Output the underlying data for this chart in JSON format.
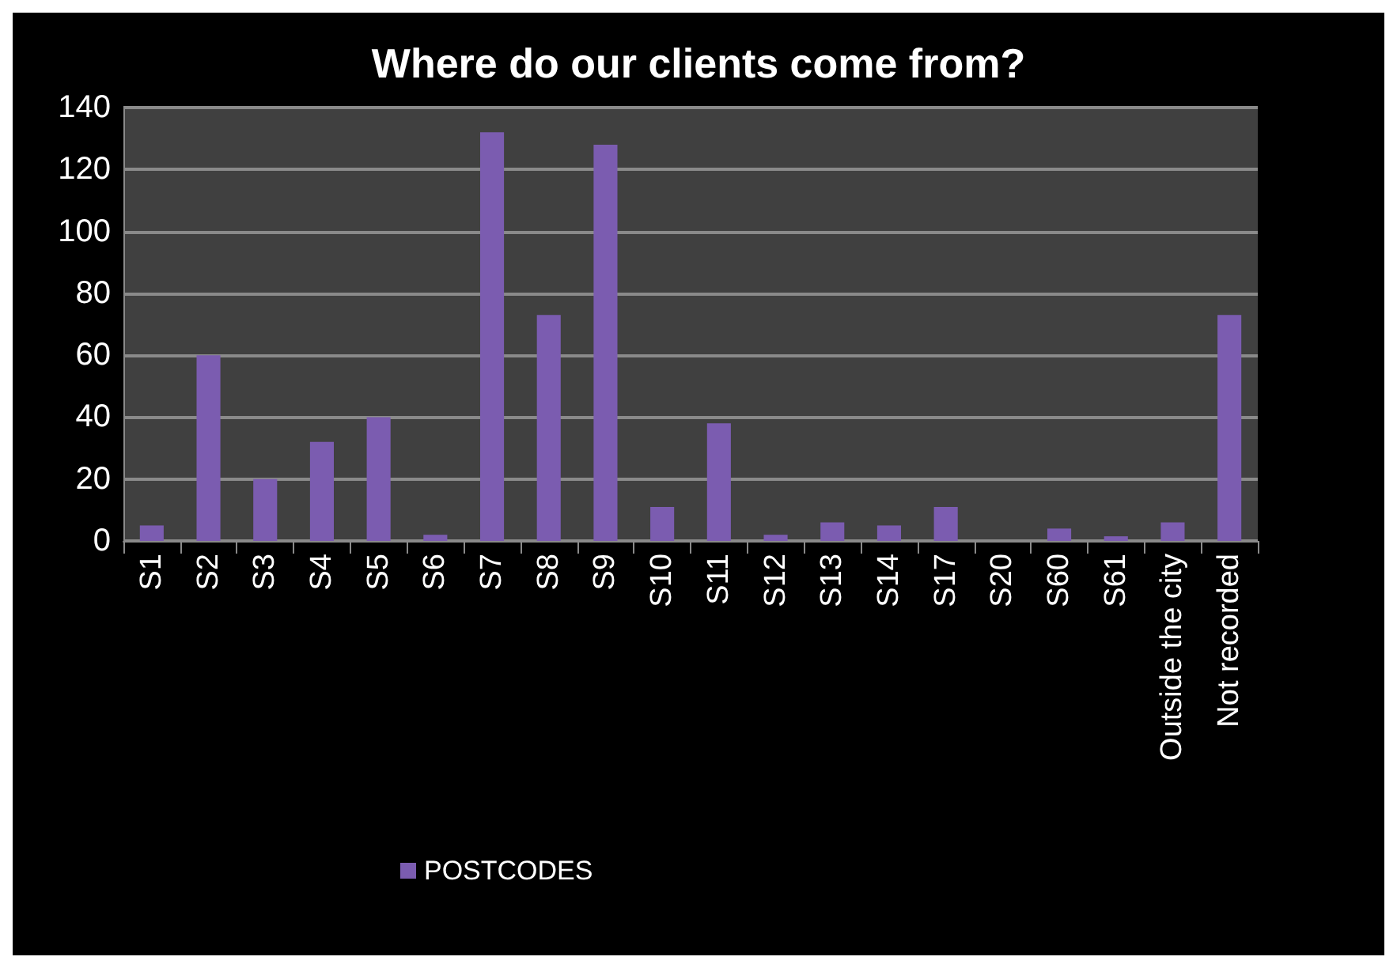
{
  "chart_data": {
    "type": "bar",
    "title": "Where do our clients come from?",
    "categories": [
      "S1",
      "S2",
      "S3",
      "S4",
      "S5",
      "S6",
      "S7",
      "S8",
      "S9",
      "S10",
      "S11",
      "S12",
      "S13",
      "S14",
      "S17",
      "S20",
      "S60",
      "S61",
      "Outside the city",
      "Not recorded"
    ],
    "series": [
      {
        "name": "POSTCODES",
        "color": "#7b5cb0",
        "values": [
          5,
          60,
          20,
          32,
          40,
          2,
          132,
          73,
          128,
          11,
          38,
          2,
          6,
          5,
          11,
          0,
          4,
          1.5,
          6,
          73
        ]
      }
    ],
    "ylim": [
      0,
      140
    ],
    "yticks": [
      0,
      20,
      40,
      60,
      80,
      100,
      120,
      140
    ],
    "grid": "y",
    "legend": "bottom"
  }
}
